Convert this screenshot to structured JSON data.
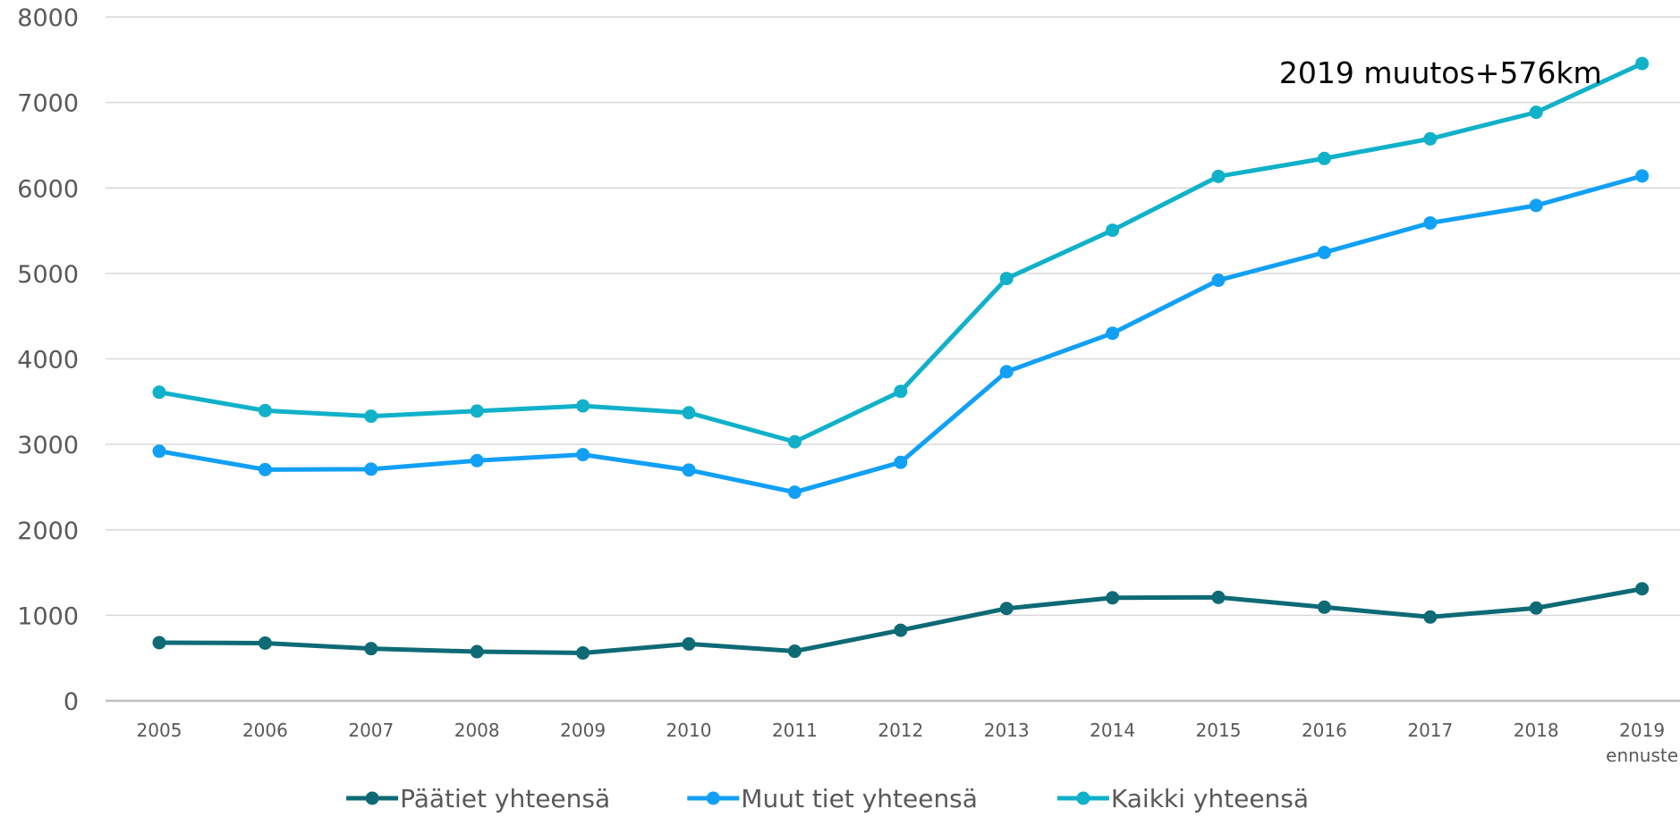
{
  "chart_data": {
    "type": "line",
    "title": "",
    "xlabel": "",
    "ylabel": "",
    "categories": [
      "2005",
      "2006",
      "2007",
      "2008",
      "2009",
      "2010",
      "2011",
      "2012",
      "2013",
      "2014",
      "2015",
      "2016",
      "2017",
      "2018",
      "2019"
    ],
    "category_sublabels": [
      "",
      "",
      "",
      "",
      "",
      "",
      "",
      "",
      "",
      "",
      "",
      "",
      "",
      "",
      "ennuste"
    ],
    "ylim": [
      0,
      8000
    ],
    "yticks": [
      0,
      1000,
      2000,
      3000,
      4000,
      5000,
      6000,
      7000,
      8000
    ],
    "grid": true,
    "legend_position": "bottom",
    "series": [
      {
        "name": "Päätiet yhteensä",
        "color": "#0e6a75",
        "values": [
          680,
          675,
          610,
          575,
          560,
          665,
          580,
          825,
          1080,
          1205,
          1210,
          1095,
          980,
          1085,
          1310
        ]
      },
      {
        "name": "Muut tiet yhteensä",
        "color": "#11a0f5",
        "values": [
          2920,
          2705,
          2710,
          2810,
          2880,
          2700,
          2440,
          2790,
          3850,
          4300,
          4920,
          5245,
          5590,
          5795,
          6140
        ]
      },
      {
        "name": "Kaikki yhteensä",
        "color": "#10b1c9",
        "values": [
          3610,
          3395,
          3330,
          3390,
          3450,
          3370,
          3030,
          3620,
          4940,
          5505,
          6135,
          6345,
          6575,
          6885,
          7455
        ]
      }
    ],
    "annotations": [
      {
        "text": "2019 muutos+576km",
        "category": "2019",
        "value": 7350
      }
    ]
  }
}
